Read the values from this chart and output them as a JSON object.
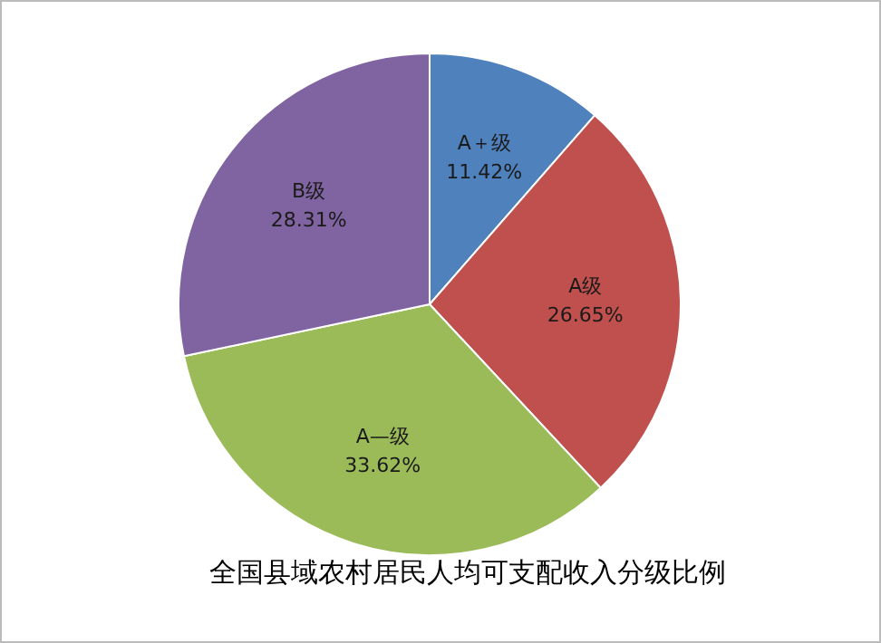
{
  "chart_data": {
    "type": "pie",
    "title": "全国县域农村居民人均可支配收入分级比例",
    "categories": [
      "A＋级",
      "A级",
      "A—级",
      "B级"
    ],
    "values": [
      11.42,
      26.65,
      33.62,
      28.31
    ],
    "value_labels": [
      "11.42%",
      "26.65%",
      "33.62%",
      "28.31%"
    ],
    "colors": [
      "#4f81bd",
      "#c0504d",
      "#9bbb59",
      "#8064a2"
    ],
    "legend": false
  }
}
